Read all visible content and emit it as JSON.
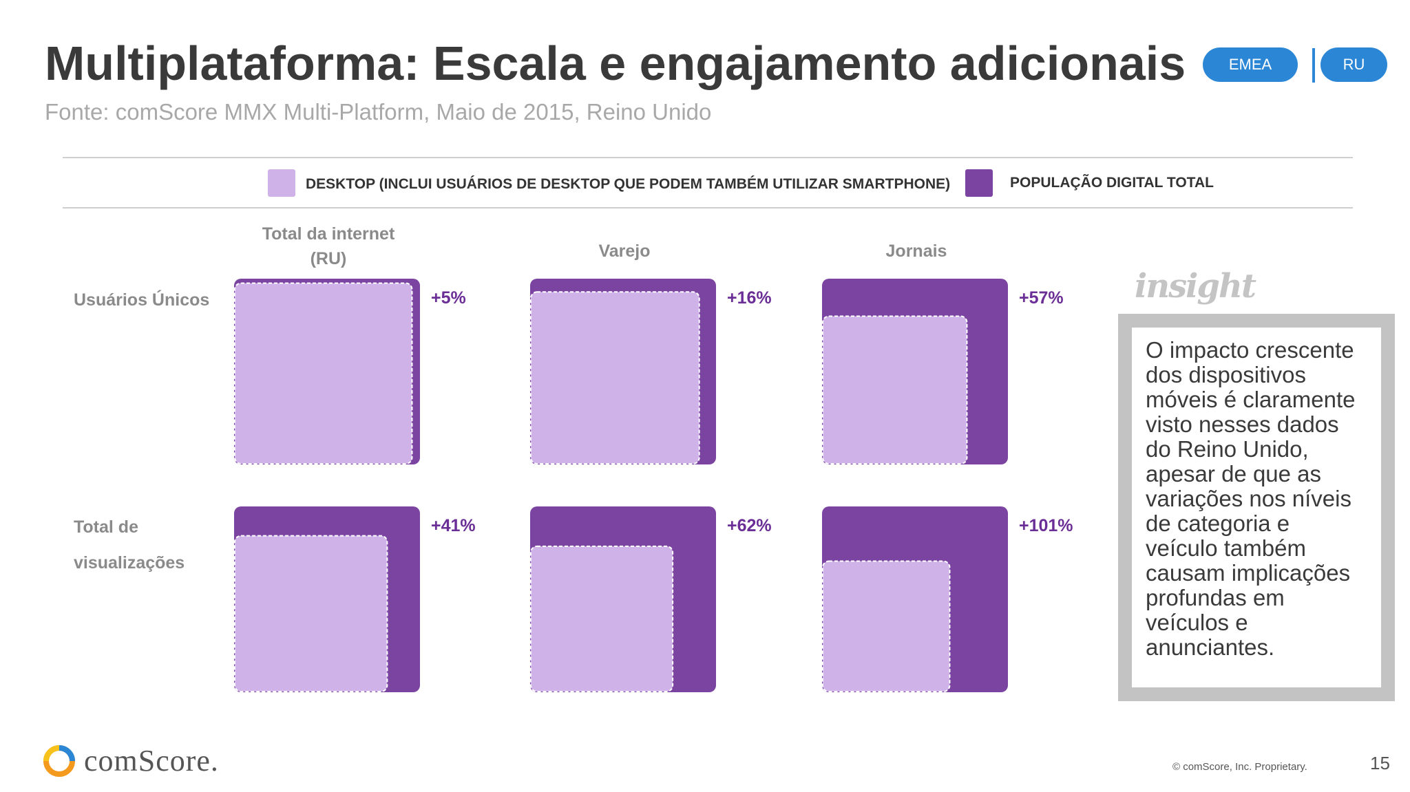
{
  "header": {
    "title": "Multiplataforma: Escala e engajamento adicionais",
    "subtitle": "Fonte: comScore MMX Multi-Platform, Maio de 2015, Reino Unido",
    "pills": [
      "EMEA",
      "RU"
    ],
    "pill_color": "#2b87d6"
  },
  "chart_data": {
    "type": "nested-square",
    "legend": [
      {
        "label": "DESKTOP (INCLUI USUÁRIOS DE DESKTOP QUE PODEM TAMBÉM UTILIZAR SMARTPHONE)",
        "color": "#cfb2e8"
      },
      {
        "label": "POPULAÇÃO DIGITAL TOTAL",
        "color": "#7b44a1"
      }
    ],
    "columns": [
      {
        "line1": "Total da internet",
        "line2": "(RU)"
      },
      {
        "line1": "Varejo",
        "line2": ""
      },
      {
        "line1": "Jornais",
        "line2": ""
      }
    ],
    "rows": [
      {
        "line1": "Usuários Únicos",
        "line2": ""
      },
      {
        "line1": "Total de",
        "line2": "visualizações"
      }
    ],
    "cells": [
      {
        "row": 0,
        "col": 0,
        "increase_pct": 5,
        "label": "+5%"
      },
      {
        "row": 0,
        "col": 1,
        "increase_pct": 16,
        "label": "+16%"
      },
      {
        "row": 0,
        "col": 2,
        "increase_pct": 57,
        "label": "+57%"
      },
      {
        "row": 1,
        "col": 0,
        "increase_pct": 41,
        "label": "+41%"
      },
      {
        "row": 1,
        "col": 1,
        "increase_pct": 62,
        "label": "+62%"
      },
      {
        "row": 1,
        "col": 2,
        "increase_pct": 101,
        "label": "+101%"
      }
    ],
    "label_color": "#6a2e96"
  },
  "insight": {
    "logo": "insight",
    "text": "O impacto crescente dos dispositivos móveis é claramente visto nesses dados do Reino Unido, apesar de que as variações nos níveis de categoria e veículo também causam implicações profundas em veículos e anunciantes."
  },
  "footer": {
    "brand": "comScore.",
    "note": "© comScore, Inc. Proprietary.",
    "page": "15"
  }
}
